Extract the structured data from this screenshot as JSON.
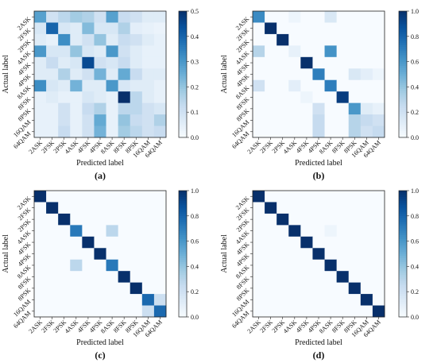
{
  "chart_data": [
    {
      "type": "heatmap",
      "panel_label": "(a)",
      "xlabel": "Predicted label",
      "ylabel": "Actual label",
      "categories": [
        "2ASK",
        "2FSK",
        "2PSK",
        "4ASK",
        "4FSK",
        "4PSK",
        "8ASK",
        "8FSK",
        "8PSK",
        "16QAM",
        "64QAM"
      ],
      "colorbar_ticks": [
        "0.0",
        "0.1",
        "0.2",
        "0.3",
        "0.4",
        "0.5"
      ],
      "vmin": 0,
      "vmax": 0.5,
      "values": [
        [
          0.28,
          0.1,
          0.14,
          0.18,
          0.16,
          0.1,
          0.28,
          0.12,
          0.1,
          0.06,
          0.06
        ],
        [
          0.08,
          0.4,
          0.08,
          0.06,
          0.22,
          0.08,
          0.08,
          0.16,
          0.05,
          0.04,
          0.03
        ],
        [
          0.06,
          0.04,
          0.32,
          0.06,
          0.1,
          0.2,
          0.06,
          0.12,
          0.1,
          0.06,
          0.04
        ],
        [
          0.3,
          0.08,
          0.08,
          0.2,
          0.08,
          0.06,
          0.3,
          0.1,
          0.06,
          0.04,
          0.04
        ],
        [
          0.06,
          0.12,
          0.06,
          0.08,
          0.45,
          0.1,
          0.08,
          0.12,
          0.06,
          0.04,
          0.04
        ],
        [
          0.06,
          0.06,
          0.16,
          0.06,
          0.1,
          0.24,
          0.06,
          0.26,
          0.12,
          0.06,
          0.06
        ],
        [
          0.32,
          0.08,
          0.06,
          0.24,
          0.06,
          0.06,
          0.3,
          0.08,
          0.06,
          0.06,
          0.04
        ],
        [
          0.04,
          0.06,
          0.04,
          0.04,
          0.08,
          0.06,
          0.04,
          0.5,
          0.14,
          0.06,
          0.04
        ],
        [
          0.04,
          0.04,
          0.1,
          0.04,
          0.12,
          0.16,
          0.04,
          0.14,
          0.14,
          0.1,
          0.08
        ],
        [
          0.04,
          0.04,
          0.1,
          0.04,
          0.1,
          0.26,
          0.04,
          0.2,
          0.12,
          0.1,
          0.16
        ],
        [
          0.04,
          0.04,
          0.12,
          0.04,
          0.1,
          0.24,
          0.04,
          0.18,
          0.14,
          0.1,
          0.12
        ]
      ]
    },
    {
      "type": "heatmap",
      "panel_label": "(b)",
      "xlabel": "Predicted label",
      "ylabel": "Actual label",
      "categories": [
        "2ASK",
        "2FSK",
        "2PSK",
        "4ASK",
        "4FSK",
        "4PSK",
        "8ASK",
        "8FSK",
        "8PSK",
        "16QAM",
        "64QAM"
      ],
      "colorbar_ticks": [
        "0.0",
        "0.2",
        "0.4",
        "0.6",
        "0.8",
        "1.0"
      ],
      "vmin": 0,
      "vmax": 1,
      "values": [
        [
          0.65,
          0,
          0,
          0.05,
          0,
          0,
          0.15,
          0,
          0,
          0,
          0
        ],
        [
          0,
          1.0,
          0,
          0,
          0,
          0,
          0,
          0,
          0,
          0,
          0
        ],
        [
          0,
          0,
          1.0,
          0,
          0,
          0,
          0,
          0,
          0,
          0,
          0
        ],
        [
          0.3,
          0,
          0,
          0.08,
          0,
          0,
          0.62,
          0,
          0,
          0,
          0
        ],
        [
          0,
          0,
          0,
          0,
          1.0,
          0,
          0,
          0,
          0,
          0,
          0
        ],
        [
          0,
          0,
          0,
          0,
          0,
          0.7,
          0,
          0,
          0.15,
          0.1,
          0.05
        ],
        [
          0.2,
          0,
          0,
          0.1,
          0,
          0,
          0.7,
          0,
          0,
          0,
          0
        ],
        [
          0,
          0,
          0,
          0,
          0.05,
          0,
          0,
          0.95,
          0,
          0,
          0
        ],
        [
          0,
          0,
          0,
          0,
          0,
          0.2,
          0,
          0,
          0.6,
          0.12,
          0.08
        ],
        [
          0,
          0,
          0,
          0,
          0,
          0.25,
          0,
          0,
          0.3,
          0.25,
          0.2
        ],
        [
          0,
          0,
          0,
          0,
          0,
          0.25,
          0,
          0,
          0.3,
          0.2,
          0.25
        ]
      ]
    },
    {
      "type": "heatmap",
      "panel_label": "(c)",
      "xlabel": "Predicted label",
      "ylabel": "Actual label",
      "categories": [
        "2ASK",
        "2FSK",
        "2PSK",
        "4ASK",
        "4FSK",
        "4PSK",
        "8ASK",
        "8FSK",
        "8PSK",
        "16QAM",
        "64QAM"
      ],
      "colorbar_ticks": [
        "0.0",
        "0.2",
        "0.4",
        "0.6",
        "0.8",
        "1.0"
      ],
      "vmin": 0,
      "vmax": 1,
      "values": [
        [
          1.0,
          0,
          0,
          0,
          0,
          0,
          0,
          0,
          0,
          0,
          0
        ],
        [
          0,
          1.0,
          0,
          0,
          0,
          0,
          0,
          0,
          0,
          0,
          0
        ],
        [
          0,
          0,
          1.0,
          0,
          0,
          0,
          0,
          0,
          0,
          0,
          0
        ],
        [
          0,
          0,
          0,
          0.72,
          0,
          0,
          0.28,
          0,
          0,
          0,
          0
        ],
        [
          0,
          0,
          0,
          0,
          1.0,
          0,
          0,
          0,
          0,
          0,
          0
        ],
        [
          0,
          0,
          0,
          0,
          0,
          1.0,
          0,
          0,
          0,
          0,
          0
        ],
        [
          0,
          0,
          0,
          0.28,
          0,
          0,
          0.72,
          0,
          0,
          0,
          0
        ],
        [
          0,
          0,
          0,
          0,
          0,
          0,
          0,
          1.0,
          0,
          0,
          0
        ],
        [
          0,
          0,
          0,
          0,
          0,
          0,
          0,
          0,
          1.0,
          0,
          0
        ],
        [
          0,
          0,
          0,
          0,
          0,
          0,
          0,
          0,
          0,
          0.78,
          0.22
        ],
        [
          0,
          0,
          0,
          0,
          0,
          0,
          0,
          0,
          0,
          0.22,
          0.78
        ]
      ]
    },
    {
      "type": "heatmap",
      "panel_label": "(d)",
      "xlabel": "Predicted label",
      "ylabel": "Actual label",
      "categories": [
        "2ASK",
        "2FSK",
        "2PSK",
        "4ASK",
        "4FSK",
        "4PSK",
        "8ASK",
        "8FSK",
        "8PSK",
        "16QAM",
        "64QAM"
      ],
      "colorbar_ticks": [
        "0.0",
        "0.2",
        "0.4",
        "0.6",
        "0.8",
        "1.0"
      ],
      "vmin": 0,
      "vmax": 1,
      "values": [
        [
          1.0,
          0,
          0,
          0,
          0,
          0,
          0,
          0,
          0,
          0,
          0
        ],
        [
          0,
          1.0,
          0,
          0,
          0,
          0,
          0,
          0,
          0,
          0,
          0
        ],
        [
          0,
          0,
          1.0,
          0,
          0,
          0,
          0,
          0,
          0,
          0,
          0
        ],
        [
          0,
          0,
          0,
          1.0,
          0,
          0,
          0.05,
          0,
          0,
          0,
          0
        ],
        [
          0,
          0,
          0,
          0,
          1.0,
          0,
          0,
          0,
          0,
          0,
          0
        ],
        [
          0,
          0,
          0,
          0,
          0,
          1.0,
          0,
          0,
          0,
          0,
          0
        ],
        [
          0,
          0,
          0,
          0,
          0,
          0,
          1.0,
          0,
          0,
          0,
          0
        ],
        [
          0,
          0,
          0,
          0,
          0,
          0,
          0,
          1.0,
          0,
          0,
          0
        ],
        [
          0,
          0,
          0,
          0,
          0,
          0,
          0,
          0,
          1.0,
          0,
          0
        ],
        [
          0,
          0,
          0,
          0,
          0,
          0,
          0,
          0,
          0,
          1.0,
          0
        ],
        [
          0,
          0,
          0,
          0,
          0,
          0,
          0,
          0,
          0,
          0,
          1.0
        ]
      ]
    }
  ]
}
